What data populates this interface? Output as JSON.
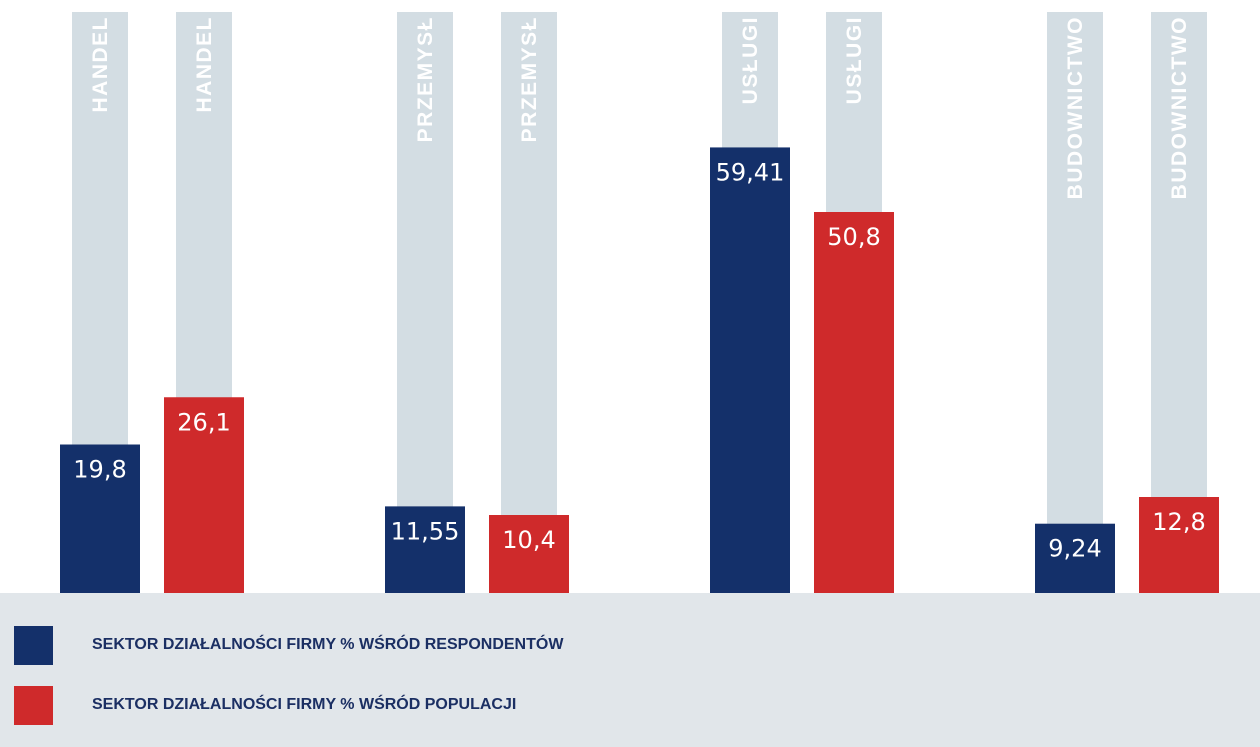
{
  "chart_data": {
    "type": "bar",
    "categories": [
      "HANDEL",
      "PRZEMYSŁ",
      "USŁUGI",
      "BUDOWNICTWO"
    ],
    "series": [
      {
        "name": "SEKTOR DZIAŁALNOŚCI FIRMY % WŚRÓD RESPONDENTÓW",
        "values": [
          19.8,
          11.55,
          59.41,
          9.24
        ],
        "labels": [
          "19,8",
          "11,55",
          "59,41",
          "9,24"
        ],
        "color": "#14306a"
      },
      {
        "name": "SEKTOR DZIAŁALNOŚCI FIRMY % WŚRÓD POPULACJI",
        "values": [
          26.1,
          10.4,
          50.8,
          12.8
        ],
        "labels": [
          "26,1",
          "10,4",
          "50,8",
          "12,8"
        ],
        "color": "#cf2a2b"
      }
    ],
    "ylim": [
      0,
      100
    ],
    "background_track_color": "#d3dde3",
    "grid": false,
    "legend_position": "bottom"
  },
  "legend": {
    "items": [
      {
        "label": "SEKTOR DZIAŁALNOŚCI FIRMY % WŚRÓD RESPONDENTÓW",
        "color": "#14306a"
      },
      {
        "label": "SEKTOR DZIAŁALNOŚCI FIRMY % WŚRÓD POPULACJI",
        "color": "#cf2a2b"
      }
    ]
  }
}
